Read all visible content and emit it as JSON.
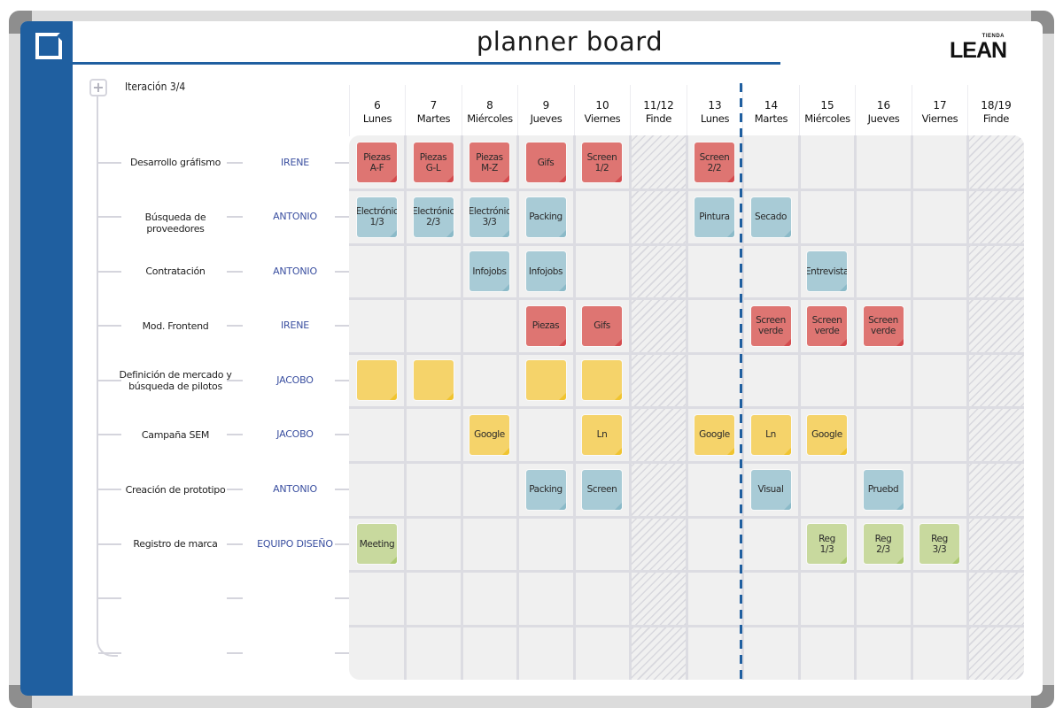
{
  "header": {
    "title": "planner board",
    "brand_small": "TIENDA",
    "brand_big": "LEAN",
    "logo_icon": "folded-corner-square-icon"
  },
  "iteration": {
    "label": "Iteración 3/4",
    "add_icon": "plus-icon"
  },
  "days": [
    {
      "num": "6",
      "name": "Lunes",
      "weekend": false
    },
    {
      "num": "7",
      "name": "Martes",
      "weekend": false
    },
    {
      "num": "8",
      "name": "Miércoles",
      "weekend": false
    },
    {
      "num": "9",
      "name": "Jueves",
      "weekend": false
    },
    {
      "num": "10",
      "name": "Viernes",
      "weekend": false
    },
    {
      "num": "11/12",
      "name": "Finde",
      "weekend": true
    },
    {
      "num": "13",
      "name": "Lunes",
      "weekend": false
    },
    {
      "num": "14",
      "name": "Martes",
      "weekend": false
    },
    {
      "num": "15",
      "name": "Miércoles",
      "weekend": false
    },
    {
      "num": "16",
      "name": "Jueves",
      "weekend": false
    },
    {
      "num": "17",
      "name": "Viernes",
      "weekend": false
    },
    {
      "num": "18/19",
      "name": "Finde",
      "weekend": true
    }
  ],
  "today_marker_after_column": 6,
  "colors": {
    "brand_blue": "#1f5fa0",
    "owner_text": "#3a4fa0",
    "note_red": "#de7572",
    "note_blue": "#a8cbd6",
    "note_yellow": "#f5d36a",
    "note_green": "#c8d99e",
    "grid_bg": "#f0f0f0",
    "grid_line": "#dcdce2"
  },
  "rows": [
    {
      "task": "Desarrollo gráfismo",
      "owner": "IRENE",
      "notes": [
        {
          "col": 0,
          "color": "red",
          "text": "Piezas\nA-F"
        },
        {
          "col": 1,
          "color": "red",
          "text": "Piezas\nG-L"
        },
        {
          "col": 2,
          "color": "red",
          "text": "Piezas\nM-Z"
        },
        {
          "col": 3,
          "color": "red",
          "text": "Gifs"
        },
        {
          "col": 4,
          "color": "red",
          "text": "Screen\n1/2"
        },
        {
          "col": 6,
          "color": "red",
          "text": "Screen\n2/2"
        }
      ]
    },
    {
      "task": "Búsqueda de proveedores",
      "owner": "ANTONIO",
      "notes": [
        {
          "col": 0,
          "color": "blue",
          "text": "Electrónic\n1/3"
        },
        {
          "col": 1,
          "color": "blue",
          "text": "Electrónic\n2/3"
        },
        {
          "col": 2,
          "color": "blue",
          "text": "Electrónic\n3/3"
        },
        {
          "col": 3,
          "color": "blue",
          "text": "Packing"
        },
        {
          "col": 6,
          "color": "blue",
          "text": "Pintura"
        },
        {
          "col": 7,
          "color": "blue",
          "text": "Secado"
        }
      ]
    },
    {
      "task": "Contratación",
      "owner": "ANTONIO",
      "notes": [
        {
          "col": 2,
          "color": "blue",
          "text": "Infojobs"
        },
        {
          "col": 3,
          "color": "blue",
          "text": "Infojobs"
        },
        {
          "col": 8,
          "color": "blue",
          "text": "Entrevista"
        }
      ]
    },
    {
      "task": "Mod. Frontend",
      "owner": "IRENE",
      "notes": [
        {
          "col": 3,
          "color": "red",
          "text": "Piezas"
        },
        {
          "col": 4,
          "color": "red",
          "text": "Gifs"
        },
        {
          "col": 7,
          "color": "red",
          "text": "Screen\nverde"
        },
        {
          "col": 8,
          "color": "red",
          "text": "Screen\nverde"
        },
        {
          "col": 9,
          "color": "red",
          "text": "Screen\nverde"
        }
      ]
    },
    {
      "task": "Definición de mercado y\nbúsqueda de pilotos",
      "owner": "JACOBO",
      "notes": [
        {
          "col": 0,
          "color": "yellow",
          "text": ""
        },
        {
          "col": 1,
          "color": "yellow",
          "text": ""
        },
        {
          "col": 3,
          "color": "yellow",
          "text": ""
        },
        {
          "col": 4,
          "color": "yellow",
          "text": ""
        }
      ]
    },
    {
      "task": "Campaña SEM",
      "owner": "JACOBO",
      "notes": [
        {
          "col": 2,
          "color": "yellow",
          "text": "Google"
        },
        {
          "col": 4,
          "color": "yellow",
          "text": "Ln"
        },
        {
          "col": 6,
          "color": "yellow",
          "text": "Google"
        },
        {
          "col": 7,
          "color": "yellow",
          "text": "Ln"
        },
        {
          "col": 8,
          "color": "yellow",
          "text": "Google"
        }
      ]
    },
    {
      "task": "Creación de prototipo",
      "owner": "ANTONIO",
      "notes": [
        {
          "col": 3,
          "color": "blue",
          "text": "Packing"
        },
        {
          "col": 4,
          "color": "blue",
          "text": "Screen"
        },
        {
          "col": 7,
          "color": "blue",
          "text": "Visual"
        },
        {
          "col": 9,
          "color": "blue",
          "text": "Pruebd"
        }
      ]
    },
    {
      "task": "Registro de marca",
      "owner": "EQUIPO DISEÑO",
      "notes": [
        {
          "col": 0,
          "color": "green",
          "text": "Meeting"
        },
        {
          "col": 8,
          "color": "green",
          "text": "Reg\n1/3"
        },
        {
          "col": 9,
          "color": "green",
          "text": "Reg\n2/3"
        },
        {
          "col": 10,
          "color": "green",
          "text": "Reg\n3/3"
        }
      ]
    },
    {
      "task": "",
      "owner": "",
      "notes": []
    },
    {
      "task": "",
      "owner": "",
      "notes": []
    }
  ]
}
